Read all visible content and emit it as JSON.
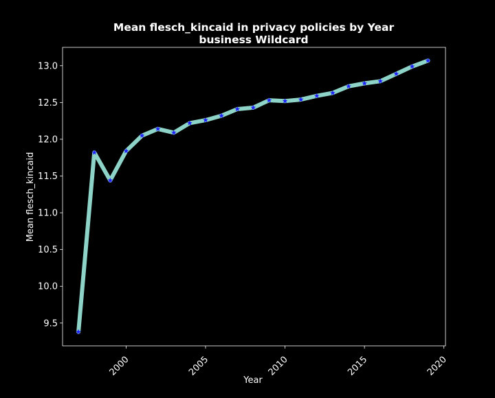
{
  "chart_data": {
    "type": "line",
    "title": "Mean flesch_kincaid in privacy policies by Year",
    "subtitle": "business Wildcard",
    "xlabel": "Year",
    "ylabel": "Mean flesch_kincaid",
    "xlim": [
      1996.0,
      2020.1
    ],
    "ylim": [
      9.19,
      13.25
    ],
    "x_ticks": [
      2000,
      2005,
      2010,
      2015,
      2020
    ],
    "x_tick_labels": [
      "2000",
      "2005",
      "2010",
      "2015",
      "2020"
    ],
    "y_ticks": [
      9.5,
      10.0,
      10.5,
      11.0,
      11.5,
      12.0,
      12.5,
      13.0
    ],
    "y_tick_labels": [
      "9.5",
      "10.0",
      "10.5",
      "11.0",
      "11.5",
      "12.0",
      "12.5",
      "13.0"
    ],
    "grid": false,
    "legend": "none",
    "series": [
      {
        "x": [
          1997,
          1998,
          1999,
          2000,
          2001,
          2002,
          2003,
          2004,
          2005,
          2006,
          2007,
          2008,
          2009,
          2010,
          2011,
          2012,
          2013,
          2014,
          2015,
          2016,
          2017,
          2018,
          2019
        ],
        "values": [
          9.38,
          11.82,
          11.44,
          11.84,
          12.05,
          12.14,
          12.09,
          12.22,
          12.26,
          12.32,
          12.41,
          12.43,
          12.53,
          12.52,
          12.54,
          12.59,
          12.63,
          12.72,
          12.76,
          12.79,
          12.89,
          12.99,
          13.07
        ]
      }
    ],
    "colors": {
      "background": "#000000",
      "line": "#8dd3c7",
      "marker": "#1f1fff",
      "text": "#ffffff",
      "axis": "#ffffff"
    }
  }
}
